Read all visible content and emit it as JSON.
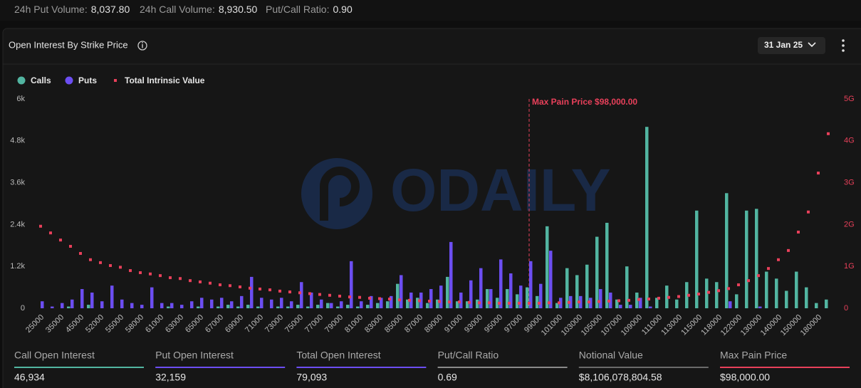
{
  "volume_stats": [
    {
      "label": "24h Put Volume:",
      "value": "8,037.80"
    },
    {
      "label": "24h Call Volume:",
      "value": "8,930.50"
    },
    {
      "label": "Put/Call Ratio:",
      "value": "0.90"
    }
  ],
  "panel_title": "Open Interest By Strike Price",
  "expiry": "31 Jan 25",
  "watermark": "ODAILY",
  "chart_data": {
    "type": "bar",
    "categories": [
      "25000",
      null,
      "35000",
      null,
      "45000",
      null,
      "52000",
      null,
      "55000",
      null,
      "58000",
      null,
      "61000",
      null,
      "63000",
      null,
      "65000",
      null,
      "67000",
      null,
      "69000",
      null,
      "71000",
      null,
      "73000",
      null,
      "75000",
      null,
      "77000",
      null,
      "79000",
      null,
      "81000",
      null,
      "83000",
      null,
      "85000",
      null,
      "87000",
      null,
      "89000",
      null,
      "91000",
      null,
      "93000",
      null,
      "95000",
      null,
      "97000",
      null,
      "99000",
      null,
      "101000",
      null,
      "103000",
      null,
      "105000",
      null,
      "107000",
      null,
      "109000",
      null,
      "111000",
      null,
      "113000",
      null,
      "115000",
      null,
      "118000",
      null,
      "122000",
      null,
      "130000",
      null,
      "140000",
      null,
      "150000",
      null,
      "180000",
      null
    ],
    "series": [
      {
        "name": "Calls",
        "color": "#52b5a1",
        "values": [
          0,
          0,
          0,
          50,
          0,
          100,
          0,
          0,
          0,
          0,
          0,
          0,
          0,
          50,
          0,
          0,
          50,
          0,
          50,
          100,
          50,
          100,
          50,
          0,
          50,
          50,
          100,
          50,
          100,
          150,
          50,
          100,
          50,
          100,
          150,
          200,
          700,
          250,
          300,
          150,
          250,
          900,
          200,
          200,
          250,
          550,
          300,
          550,
          400,
          600,
          350,
          2350,
          150,
          1150,
          950,
          1250,
          2050,
          2450,
          250,
          1200,
          450,
          5200,
          300,
          650,
          250,
          750,
          2800,
          850,
          750,
          3300,
          400,
          2800,
          2850,
          1050,
          850,
          500,
          1050,
          600,
          150,
          250
        ]
      },
      {
        "name": "Puts",
        "color": "#6c4ef2",
        "values": [
          200,
          50,
          150,
          250,
          550,
          450,
          200,
          650,
          250,
          150,
          100,
          600,
          150,
          150,
          100,
          200,
          300,
          250,
          300,
          200,
          350,
          900,
          300,
          250,
          300,
          200,
          750,
          450,
          250,
          150,
          200,
          1350,
          200,
          350,
          300,
          350,
          950,
          450,
          450,
          550,
          650,
          1900,
          450,
          800,
          1150,
          550,
          1400,
          1000,
          650,
          1350,
          700,
          1650,
          300,
          350,
          350,
          300,
          550,
          450,
          100,
          100,
          300,
          50,
          0,
          0,
          0,
          0,
          0,
          0,
          0,
          200,
          0,
          0,
          50,
          0,
          0,
          0,
          0,
          0,
          0,
          0
        ]
      },
      {
        "name": "Total Intrinsic Value",
        "color": "#e8405a",
        "type": "scatter",
        "axis": "y2",
        "values": [
          1.96,
          1.8,
          1.63,
          1.48,
          1.31,
          1.16,
          1.09,
          1.02,
          0.98,
          0.9,
          0.85,
          0.82,
          0.78,
          0.73,
          0.71,
          0.66,
          0.63,
          0.6,
          0.56,
          0.54,
          0.51,
          0.48,
          0.46,
          0.44,
          0.41,
          0.39,
          0.37,
          0.35,
          0.33,
          0.31,
          0.29,
          0.27,
          0.26,
          0.24,
          0.23,
          0.22,
          0.2,
          0.19,
          0.18,
          0.17,
          0.16,
          0.15,
          0.15,
          0.14,
          0.13,
          0.13,
          0.12,
          0.12,
          0.12,
          0.12,
          0.12,
          0.13,
          0.13,
          0.14,
          0.15,
          0.15,
          0.16,
          0.17,
          0.18,
          0.19,
          0.21,
          0.22,
          0.24,
          0.26,
          0.28,
          0.31,
          0.34,
          0.38,
          0.42,
          0.47,
          0.56,
          0.66,
          0.78,
          0.95,
          1.16,
          1.38,
          1.82,
          2.3,
          3.23,
          4.17
        ]
      }
    ],
    "ylim": [
      0,
      6000
    ],
    "yticks": [
      0,
      {
        "value": 1200,
        "label": "1.2k"
      },
      {
        "value": 2400,
        "label": "2.4k"
      },
      {
        "value": 3600,
        "label": "3.6k"
      },
      {
        "value": 4800,
        "label": "4.8k"
      },
      {
        "value": 6000,
        "label": "6k"
      }
    ],
    "y2lim": [
      0,
      5
    ],
    "y2ticks": [
      0,
      {
        "value": 1,
        "label": "1G"
      },
      {
        "value": 2,
        "label": "2G"
      },
      {
        "value": 3,
        "label": "3G"
      },
      {
        "value": 4,
        "label": "4G"
      },
      {
        "value": 5,
        "label": "5G"
      }
    ],
    "annotation": "Max Pain Price $98,000.00"
  },
  "stats": [
    {
      "label": "Call Open Interest",
      "value": "46,934"
    },
    {
      "label": "Put Open Interest",
      "value": "32,159"
    },
    {
      "label": "Total Open Interest",
      "value": "79,093"
    },
    {
      "label": "Put/Call Ratio",
      "value": "0.69"
    },
    {
      "label": "Notional Value",
      "value": "$8,106,078,804.58"
    },
    {
      "label": "Max Pain Price",
      "value": "$98,000.00"
    }
  ]
}
